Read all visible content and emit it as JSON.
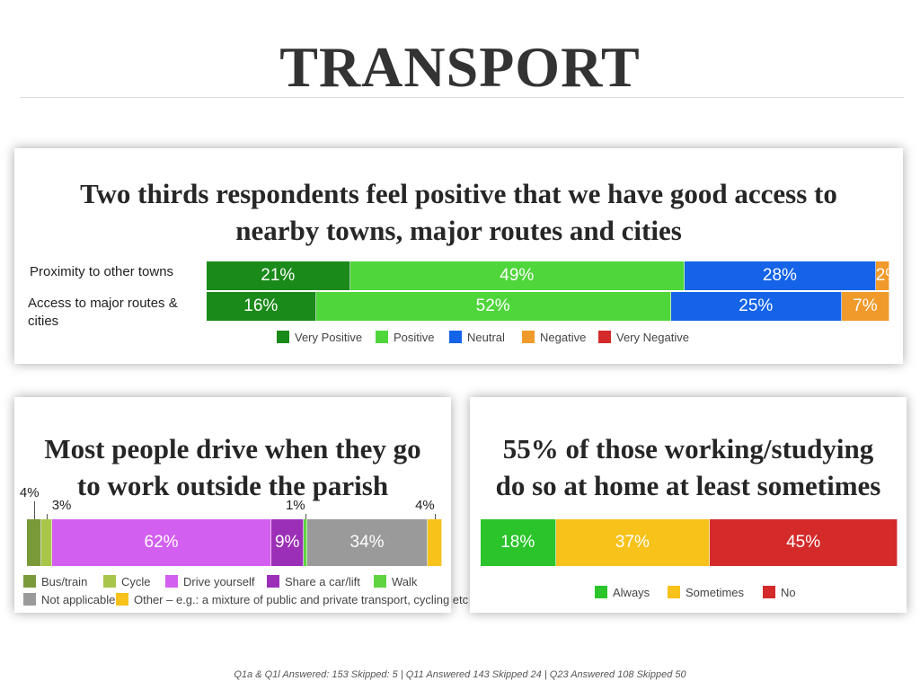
{
  "slide": {
    "title": "TRANSPORT"
  },
  "access_panel": {
    "heading_line1": "Two thirds respondents feel positive that we have good access to",
    "heading_line2": "nearby towns, major routes and cities"
  },
  "drive_panel": {
    "heading_line1": "Most people drive when they go",
    "heading_line2": "to work outside the parish"
  },
  "home_panel": {
    "heading_line1": "55% of those working/studying",
    "heading_line2": "do so at home at least sometimes"
  },
  "footer": {
    "note": "Q1a & Q1l Answered: 153  Skipped: 5 | Q11 Answered 143 Skipped 24 | Q23 Answered 108 Skipped 50"
  },
  "chart_data": [
    {
      "type": "bar",
      "orientation": "horizontal",
      "stacked": true,
      "categories": [
        "Proximity to other towns",
        "Access to major routes & cities"
      ],
      "series": [
        {
          "name": "Very Positive",
          "color": "#1a8a1a",
          "values": [
            21,
            16
          ],
          "labels": [
            "21%",
            "16%"
          ]
        },
        {
          "name": "Positive",
          "color": "#4fd63a",
          "values": [
            49,
            52
          ],
          "labels": [
            "49%",
            "52%"
          ]
        },
        {
          "name": "Neutral",
          "color": "#1463e8",
          "values": [
            28,
            25
          ],
          "labels": [
            "28%",
            "25%"
          ]
        },
        {
          "name": "Negative",
          "color": "#f09a2b",
          "values": [
            2,
            7
          ],
          "labels": [
            "2%",
            "7%"
          ]
        },
        {
          "name": "Very Negative",
          "color": "#d42a2a",
          "values": [
            0,
            0
          ],
          "labels": [
            "",
            ""
          ]
        }
      ],
      "legend_position": "bottom"
    },
    {
      "type": "bar",
      "orientation": "horizontal",
      "stacked": true,
      "categories": [
        ""
      ],
      "series": [
        {
          "name": "Bus/train",
          "color": "#7a9a3a",
          "values": [
            4
          ],
          "labels": [
            ""
          ],
          "callout": "4%"
        },
        {
          "name": "Cycle",
          "color": "#a8c64a",
          "values": [
            3
          ],
          "labels": [
            ""
          ],
          "callout": "3%"
        },
        {
          "name": "Drive yourself",
          "color": "#d35ff0",
          "values": [
            62
          ],
          "labels": [
            "62%"
          ]
        },
        {
          "name": "Share a car/lift",
          "color": "#9c2fb8",
          "values": [
            9
          ],
          "labels": [
            "9%"
          ]
        },
        {
          "name": "Walk",
          "color": "#5fd440",
          "values": [
            1
          ],
          "labels": [
            ""
          ],
          "callout": "1%"
        },
        {
          "name": "Not applicable",
          "color": "#9a9a9a",
          "values": [
            34
          ],
          "labels": [
            "34%"
          ]
        },
        {
          "name": "Other – e.g.: a mixture of public and private transport, cycling etc",
          "color": "#f7c21a",
          "values": [
            4
          ],
          "labels": [
            ""
          ],
          "callout": "4%"
        }
      ],
      "legend_position": "bottom"
    },
    {
      "type": "bar",
      "orientation": "horizontal",
      "stacked": true,
      "categories": [
        ""
      ],
      "series": [
        {
          "name": "Always",
          "color": "#2bc42b",
          "values": [
            18
          ],
          "labels": [
            "18%"
          ]
        },
        {
          "name": "Sometimes",
          "color": "#f7c21a",
          "values": [
            37
          ],
          "labels": [
            "37%"
          ]
        },
        {
          "name": "No",
          "color": "#d42a2a",
          "values": [
            45
          ],
          "labels": [
            "45%"
          ]
        }
      ],
      "legend_position": "bottom"
    }
  ]
}
